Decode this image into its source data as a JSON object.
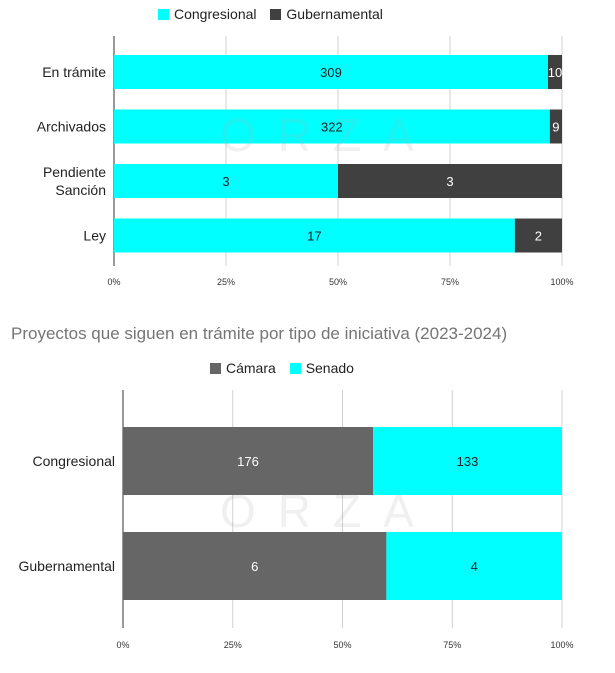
{
  "watermark_text": "ORZA",
  "chart_data": [
    {
      "type": "bar",
      "orientation": "horizontal",
      "stacked": "percent",
      "title": "",
      "categories": [
        "En trámite",
        "Archivados",
        "Pendiente\nSanción",
        "Ley"
      ],
      "series": [
        {
          "name": "Congresional",
          "color": "#00ffff",
          "values": [
            309,
            322,
            3,
            17
          ]
        },
        {
          "name": "Gubernamental",
          "color": "#404040",
          "values": [
            10,
            9,
            3,
            2
          ]
        }
      ],
      "xticks": [
        "0%",
        "25%",
        "50%",
        "75%",
        "100%"
      ],
      "xlim": [
        0,
        100
      ],
      "grid": true,
      "legend": "top"
    },
    {
      "type": "bar",
      "orientation": "horizontal",
      "stacked": "percent",
      "title": "Proyectos que siguen en trámite por tipo de iniciativa (2023-2024)",
      "categories": [
        "Congresional",
        "Gubernamental"
      ],
      "series": [
        {
          "name": "Cámara",
          "color": "#666666",
          "values": [
            176,
            6
          ]
        },
        {
          "name": "Senado",
          "color": "#00ffff",
          "values": [
            133,
            4
          ]
        }
      ],
      "xticks": [
        "0%",
        "25%",
        "50%",
        "75%",
        "100%"
      ],
      "xlim": [
        0,
        100
      ],
      "grid": true,
      "legend": "top"
    }
  ]
}
